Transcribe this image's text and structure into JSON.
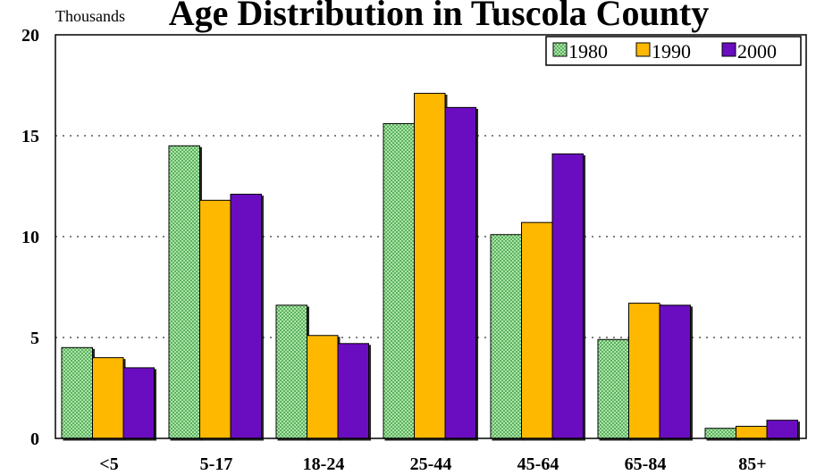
{
  "chart_data": {
    "type": "bar",
    "title": "Age Distribution in Tuscola County",
    "unit_label": "Thousands",
    "xlabel": "",
    "ylabel": "",
    "ylim": [
      0,
      20
    ],
    "yticks": [
      0,
      5,
      10,
      15,
      20
    ],
    "ytick_labels": [
      "0",
      "5",
      "10",
      "15",
      "20"
    ],
    "grid": "horizontal dotted",
    "legend_position": "top-right",
    "categories": [
      "<5",
      "5-17",
      "18-24",
      "25-44",
      "45-64",
      "65-84",
      "85+"
    ],
    "series": [
      {
        "name": "1980",
        "color": "#a8e8a8",
        "pattern": "crosshatch",
        "values": [
          4.5,
          14.5,
          6.6,
          15.6,
          10.1,
          4.9,
          0.5
        ]
      },
      {
        "name": "1990",
        "color": "#ffb800",
        "pattern": "solid",
        "values": [
          4.0,
          11.8,
          5.1,
          17.1,
          10.7,
          6.7,
          0.6
        ]
      },
      {
        "name": "2000",
        "color": "#6a0dc0",
        "pattern": "solid",
        "values": [
          3.5,
          12.1,
          4.7,
          16.4,
          14.1,
          6.6,
          0.9
        ]
      }
    ]
  }
}
